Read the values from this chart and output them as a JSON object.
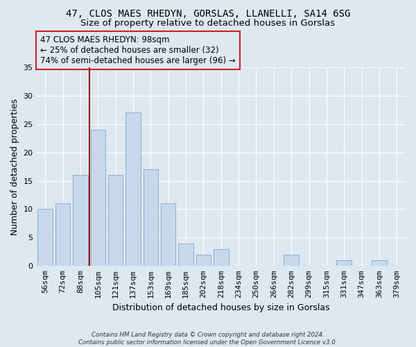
{
  "title1": "47, CLOS MAES RHEDYN, GORSLAS, LLANELLI, SA14 6SG",
  "title2": "Size of property relative to detached houses in Gorslas",
  "xlabel": "Distribution of detached houses by size in Gorslas",
  "ylabel": "Number of detached properties",
  "categories": [
    "56sqm",
    "72sqm",
    "88sqm",
    "105sqm",
    "121sqm",
    "137sqm",
    "153sqm",
    "169sqm",
    "185sqm",
    "202sqm",
    "218sqm",
    "234sqm",
    "250sqm",
    "266sqm",
    "282sqm",
    "299sqm",
    "315sqm",
    "331sqm",
    "347sqm",
    "363sqm",
    "379sqm"
  ],
  "values": [
    10,
    11,
    16,
    24,
    16,
    27,
    17,
    11,
    4,
    2,
    3,
    0,
    0,
    0,
    2,
    0,
    0,
    1,
    0,
    1,
    0
  ],
  "bar_color": "#c8d8ea",
  "bar_edge_color": "#8aafd0",
  "vline_x_idx": 3,
  "vline_color": "#990000",
  "annotation_lines": [
    "47 CLOS MAES RHEDYN: 98sqm",
    "← 25% of detached houses are smaller (32)",
    "74% of semi-detached houses are larger (96) →"
  ],
  "footer": "Contains HM Land Registry data © Crown copyright and database right 2024.\nContains public sector information licensed under the Open Government Licence v3.0.",
  "ylim": [
    0,
    35
  ],
  "yticks": [
    0,
    5,
    10,
    15,
    20,
    25,
    30,
    35
  ],
  "bg_color": "#dde8f0",
  "grid_color": "#ffffff",
  "title_fontsize": 10,
  "subtitle_fontsize": 9.5,
  "axis_label_fontsize": 9,
  "tick_fontsize": 8,
  "annotation_fontsize": 8.5
}
